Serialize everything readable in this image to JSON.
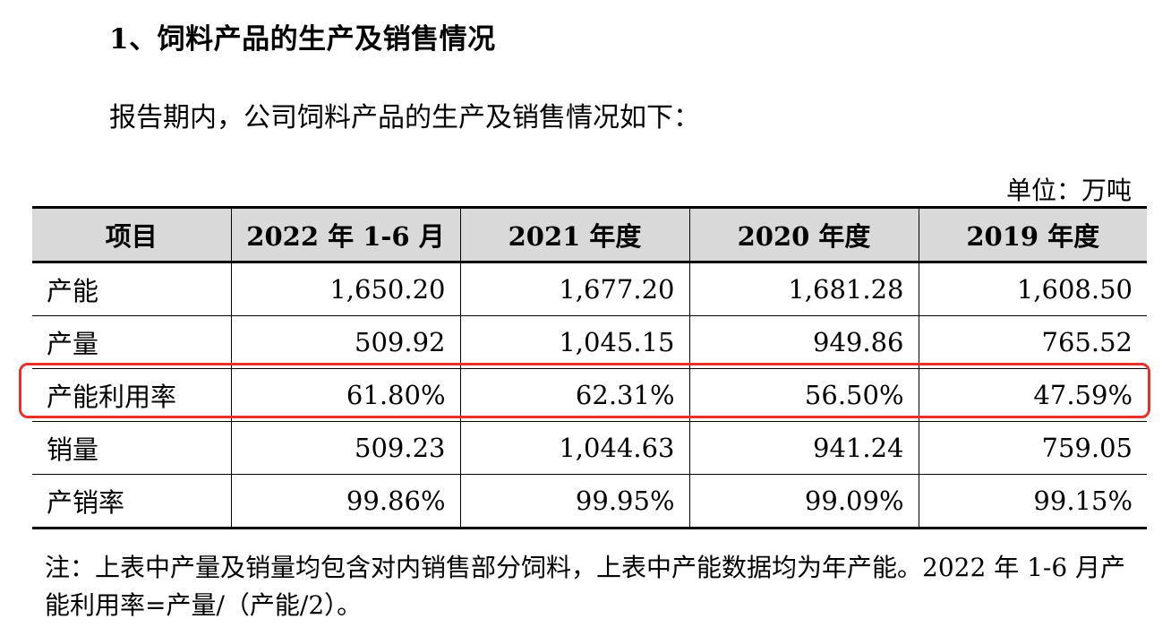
{
  "heading": "1、饲料产品的生产及销售情况",
  "intro": "报告期内，公司饲料产品的生产及销售情况如下：",
  "unit": "单位：万吨",
  "table": {
    "headers": [
      "项目",
      "2022 年 1-6 月",
      "2021 年度",
      "2020 年度",
      "2019 年度"
    ],
    "rows": [
      [
        "产能",
        "1,650.20",
        "1,677.20",
        "1,681.28",
        "1,608.50"
      ],
      [
        "产量",
        "509.92",
        "1,045.15",
        "949.86",
        "765.52"
      ],
      [
        "产能利用率",
        "61.80%",
        "62.31%",
        "56.50%",
        "47.59%"
      ],
      [
        "销量",
        "509.23",
        "1,044.63",
        "941.24",
        "759.05"
      ],
      [
        "产销率",
        "99.86%",
        "99.95%",
        "99.09%",
        "99.15%"
      ]
    ]
  },
  "highlight_color": "#e8312a",
  "note": "注：上表中产量及销量均包含对内销售部分饲料，上表中产能数据均为年产能。2022 年 1-6 月产能利用率=产量/（产能/2）。"
}
